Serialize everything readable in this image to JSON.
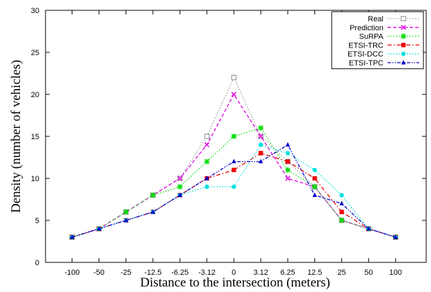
{
  "chart_data": {
    "type": "line",
    "xlabel": "Distance to the intersection (meters)",
    "ylabel": "Density (number of vehicles)",
    "categories": [
      "-100",
      "-50",
      "-25",
      "-12.5",
      "-6.25",
      "-3.12",
      "0",
      "3.12",
      "6.25",
      "12.5",
      "25",
      "50",
      "100"
    ],
    "ylim": [
      0,
      30
    ],
    "yticks": [
      "0",
      "5",
      "10",
      "15",
      "20",
      "25",
      "30"
    ],
    "grid": false,
    "legend_position": "top-right",
    "series": [
      {
        "name": "Real",
        "color": "#999999",
        "marker": "square-open",
        "dash": "dotted",
        "values": [
          3,
          4,
          6,
          8,
          10,
          15,
          22,
          15,
          12,
          9,
          5,
          4,
          3
        ]
      },
      {
        "name": "Prediction",
        "color": "#e000e0",
        "marker": "x",
        "dash": "dashed",
        "values": [
          3,
          4,
          6,
          8,
          10,
          14,
          20,
          15,
          10,
          9,
          5,
          4,
          3
        ]
      },
      {
        "name": "SuRPA",
        "color": "#00dd00",
        "marker": "star",
        "dash": "dotted",
        "values": [
          3,
          4,
          6,
          8,
          9,
          12,
          15,
          16,
          11,
          9,
          5,
          4,
          3
        ]
      },
      {
        "name": "ETSI-TRC",
        "color": "#ee0000",
        "marker": "square-filled",
        "dash": "dashdot",
        "values": [
          3,
          4,
          5,
          6,
          8,
          10,
          11,
          13,
          12,
          10,
          6,
          4,
          3
        ]
      },
      {
        "name": "ETSI-DCC",
        "color": "#00e0e0",
        "marker": "circle-filled",
        "dash": "dotted",
        "values": [
          3,
          4,
          5,
          6,
          8,
          9,
          9,
          14,
          13,
          11,
          8,
          4,
          3
        ]
      },
      {
        "name": "ETSI-TPC",
        "color": "#0000cc",
        "marker": "triangle-filled",
        "dash": "dashdotdot",
        "values": [
          3,
          4,
          5,
          6,
          8,
          10,
          12,
          12,
          14,
          8,
          7,
          4,
          3
        ]
      }
    ]
  }
}
